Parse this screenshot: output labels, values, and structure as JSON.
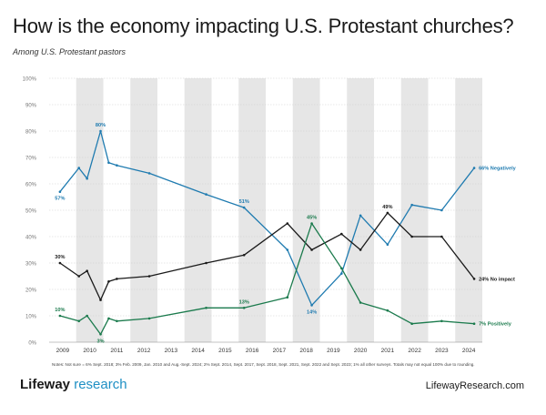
{
  "header": {
    "title": "How is the economy impacting U.S. Protestant churches?",
    "subtitle": "Among U.S. Protestant pastors"
  },
  "footer": {
    "notes": "Notes: Not sure = 6% Sept. 2018; 3% Feb. 2009, Jan. 2010 and Aug.-Sept. 2024; 2% Sept. 2014, Sept. 2017, Sept. 2018, Sept. 2021, Sept. 2022 and Sept. 2023; 1% all other surveys. Totals may not equal 100% due to rounding.",
    "brand_word": "Lifeway",
    "brand_accent": "research",
    "url": "LifewayResearch.com"
  },
  "chart_data": {
    "type": "line",
    "title": "How is the economy impacting U.S. Protestant churches?",
    "ylim": [
      0,
      100
    ],
    "xlim": [
      2008.5,
      2024.5
    ],
    "yticks": [
      "0%",
      "10%",
      "20%",
      "30%",
      "40%",
      "50%",
      "60%",
      "70%",
      "80%",
      "90%",
      "100%"
    ],
    "xticks": [
      "2009",
      "2010",
      "2011",
      "2012",
      "2013",
      "2014",
      "2015",
      "2016",
      "2017",
      "2018",
      "2019",
      "2020",
      "2021",
      "2022",
      "2023",
      "2024"
    ],
    "series": [
      {
        "name": "Negatively",
        "color": "#1f7bb0",
        "points": [
          [
            2008.9,
            57
          ],
          [
            2009.6,
            66
          ],
          [
            2009.9,
            62
          ],
          [
            2010.4,
            80
          ],
          [
            2010.7,
            68
          ],
          [
            2011.0,
            67
          ],
          [
            2012.2,
            64
          ],
          [
            2014.3,
            56
          ],
          [
            2015.7,
            51
          ],
          [
            2017.3,
            35
          ],
          [
            2018.2,
            14
          ],
          [
            2019.3,
            26
          ],
          [
            2020.0,
            48
          ],
          [
            2021.0,
            37
          ],
          [
            2021.9,
            52
          ],
          [
            2023.0,
            50
          ],
          [
            2024.2,
            66
          ]
        ],
        "labels": [
          {
            "index": 0,
            "text": "57%",
            "pos": "below"
          },
          {
            "index": 3,
            "text": "80%",
            "pos": "above"
          },
          {
            "index": 8,
            "text": "51%",
            "pos": "above"
          },
          {
            "index": 10,
            "text": "14%",
            "pos": "below"
          },
          {
            "index": 16,
            "text": "66% Negatively",
            "pos": "right"
          }
        ]
      },
      {
        "name": "No impact",
        "color": "#1a1a1a",
        "points": [
          [
            2008.9,
            30
          ],
          [
            2009.6,
            25
          ],
          [
            2009.9,
            27
          ],
          [
            2010.4,
            16
          ],
          [
            2010.7,
            23
          ],
          [
            2011.0,
            24
          ],
          [
            2012.2,
            25
          ],
          [
            2014.3,
            30
          ],
          [
            2015.7,
            33
          ],
          [
            2017.3,
            45
          ],
          [
            2018.2,
            35
          ],
          [
            2019.3,
            41
          ],
          [
            2020.0,
            35
          ],
          [
            2021.0,
            49
          ],
          [
            2021.9,
            40
          ],
          [
            2023.0,
            40
          ],
          [
            2024.2,
            24
          ]
        ],
        "labels": [
          {
            "index": 0,
            "text": "30%",
            "pos": "above"
          },
          {
            "index": 13,
            "text": "49%",
            "pos": "above"
          },
          {
            "index": 16,
            "text": "24% No impact",
            "pos": "right"
          }
        ]
      },
      {
        "name": "Positively",
        "color": "#1a7a4c",
        "points": [
          [
            2008.9,
            10
          ],
          [
            2009.6,
            8
          ],
          [
            2009.9,
            10
          ],
          [
            2010.4,
            3
          ],
          [
            2010.7,
            9
          ],
          [
            2011.0,
            8
          ],
          [
            2012.2,
            9
          ],
          [
            2014.3,
            13
          ],
          [
            2015.7,
            13
          ],
          [
            2017.3,
            17
          ],
          [
            2018.2,
            45
          ],
          [
            2019.3,
            28
          ],
          [
            2020.0,
            15
          ],
          [
            2021.0,
            12
          ],
          [
            2021.9,
            7
          ],
          [
            2023.0,
            8
          ],
          [
            2024.2,
            7
          ]
        ],
        "labels": [
          {
            "index": 0,
            "text": "10%",
            "pos": "above"
          },
          {
            "index": 3,
            "text": "3%",
            "pos": "below"
          },
          {
            "index": 8,
            "text": "13%",
            "pos": "above"
          },
          {
            "index": 10,
            "text": "45%",
            "pos": "above"
          },
          {
            "index": 16,
            "text": "7% Positively",
            "pos": "right"
          }
        ]
      }
    ]
  }
}
